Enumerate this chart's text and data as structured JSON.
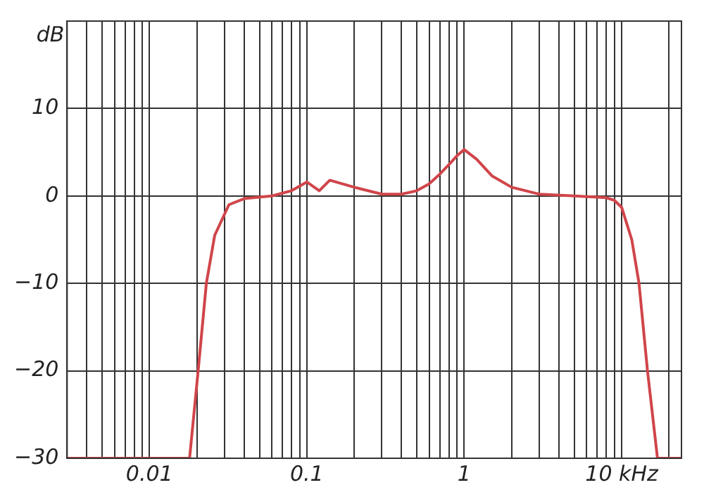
{
  "chart_data": {
    "type": "line",
    "ylabel": "dB",
    "log": "x",
    "grid": true,
    "legend": false,
    "marker": "none",
    "line_style": "solid",
    "xlim": [
      0.003,
      24
    ],
    "ylim": [
      -30,
      20
    ],
    "xticks": [
      {
        "value": 0.003,
        "label": null
      },
      {
        "value": 0.004,
        "label": null
      },
      {
        "value": 0.005,
        "label": null
      },
      {
        "value": 0.006,
        "label": null
      },
      {
        "value": 0.007,
        "label": null
      },
      {
        "value": 0.008,
        "label": null
      },
      {
        "value": 0.009,
        "label": null
      },
      {
        "value": 0.01,
        "label": "0.01"
      },
      {
        "value": 0.02,
        "label": null
      },
      {
        "value": 0.03,
        "label": null
      },
      {
        "value": 0.04,
        "label": null
      },
      {
        "value": 0.05,
        "label": null
      },
      {
        "value": 0.06,
        "label": null
      },
      {
        "value": 0.07,
        "label": null
      },
      {
        "value": 0.08,
        "label": null
      },
      {
        "value": 0.09,
        "label": null
      },
      {
        "value": 0.1,
        "label": "0.1"
      },
      {
        "value": 0.2,
        "label": null
      },
      {
        "value": 0.3,
        "label": null
      },
      {
        "value": 0.4,
        "label": null
      },
      {
        "value": 0.5,
        "label": null
      },
      {
        "value": 0.6,
        "label": null
      },
      {
        "value": 0.7,
        "label": null
      },
      {
        "value": 0.8,
        "label": null
      },
      {
        "value": 0.9,
        "label": null
      },
      {
        "value": 1,
        "label": "1"
      },
      {
        "value": 2,
        "label": null
      },
      {
        "value": 3,
        "label": null
      },
      {
        "value": 4,
        "label": null
      },
      {
        "value": 5,
        "label": null
      },
      {
        "value": 6,
        "label": null
      },
      {
        "value": 7,
        "label": null
      },
      {
        "value": 8,
        "label": null
      },
      {
        "value": 9,
        "label": null
      },
      {
        "value": 10,
        "label": "10 kHz"
      },
      {
        "value": 20,
        "label": null
      }
    ],
    "yticks": [
      -30,
      -20,
      -10,
      0,
      10
    ],
    "series": [
      {
        "color": "#d0454a",
        "x": [
          0.003,
          0.018,
          0.0204,
          0.023,
          0.026,
          0.032,
          0.04,
          0.06,
          0.08,
          0.1,
          0.12,
          0.14,
          0.2,
          0.3,
          0.4,
          0.5,
          0.6,
          0.7,
          0.8,
          0.9,
          1,
          1.2,
          1.5,
          2,
          3,
          5,
          8,
          9,
          10,
          11.6,
          12.9,
          14.6,
          16.9,
          24
        ],
        "values": [
          -30,
          -30,
          -20,
          -10,
          -4.5,
          -1,
          -0.3,
          0,
          0.6,
          1.6,
          0.6,
          1.8,
          1,
          0.2,
          0.2,
          0.6,
          1.4,
          2.5,
          3.6,
          4.6,
          5.3,
          4.2,
          2.3,
          1,
          0.2,
          0,
          -0.2,
          -0.5,
          -1.3,
          -5,
          -10,
          -20,
          -30,
          -30
        ]
      }
    ]
  }
}
